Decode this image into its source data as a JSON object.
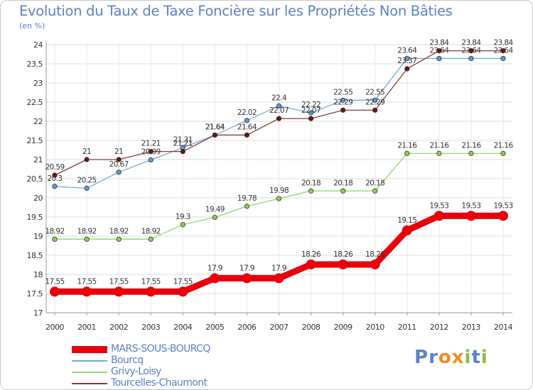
{
  "header": {
    "title": "Evolution du Taux de Taxe Foncière sur les Propriétés Non Bâties",
    "unit": "(en %)"
  },
  "logo": {
    "text": "Proxiti",
    "letters": [
      "P",
      "r",
      "o",
      "x",
      "i",
      "t",
      "i"
    ],
    "colors": [
      "#5b82c4",
      "#5b82c4",
      "#f28c1e",
      "#f28c1e",
      "#8cbd3f",
      "#5b82c4",
      "#8cbd3f"
    ]
  },
  "chart_data": {
    "type": "line",
    "title": "Evolution du Taux de Taxe Foncière sur les Propriétés Non Bâties",
    "ylabel": "(en %)",
    "xlabel": "",
    "x": [
      "2000",
      "2001",
      "2002",
      "2003",
      "2004",
      "2005",
      "2006",
      "2007",
      "2008",
      "2009",
      "2010",
      "2011",
      "2012",
      "2013",
      "2014"
    ],
    "ylim": [
      17,
      24
    ],
    "yticks": [
      "17",
      "17.5",
      "18",
      "18.5",
      "19",
      "19.5",
      "20",
      "20.5",
      "21",
      "21.5",
      "22",
      "22.5",
      "23",
      "23.5",
      "24"
    ],
    "grid": true,
    "legend_position": "bottom-left",
    "series": [
      {
        "name": "MARS-SOUS-BOURCQ",
        "color": "#e8000b",
        "line_color": "#e8000b",
        "thick": true,
        "values": [
          17.55,
          17.55,
          17.55,
          17.55,
          17.55,
          17.9,
          17.9,
          17.9,
          18.26,
          18.26,
          18.26,
          19.15,
          19.53,
          19.53,
          19.53
        ],
        "labels": [
          "17.55",
          "17.55",
          "17.55",
          "17.55",
          "17.55",
          "17.9",
          "17.9",
          "17.9",
          "18.26",
          "18.26",
          "18.26",
          "19.15",
          "19.53",
          "19.53",
          "19.53"
        ]
      },
      {
        "name": "Bourcq",
        "color": "#5b9bd5",
        "line_color": "#7aaad6",
        "thick": false,
        "values": [
          20.3,
          20.25,
          20.67,
          20.99,
          21.31,
          21.64,
          22.02,
          22.4,
          22.22,
          22.55,
          22.55,
          23.64,
          23.64,
          23.64,
          23.64
        ],
        "labels": [
          "20.3",
          "20.25",
          "20.67",
          "20.99",
          "21.31",
          "21.64",
          "22.02",
          "22.4",
          "22.22",
          "22.55",
          "22.55",
          "23.64",
          "23.64",
          "23.64",
          "23.64"
        ]
      },
      {
        "name": "Grivy-Loisy",
        "color": "#8cd14b",
        "line_color": "#9bd36a",
        "thick": false,
        "values": [
          18.92,
          18.92,
          18.92,
          18.92,
          19.3,
          19.49,
          19.78,
          19.98,
          20.18,
          20.18,
          20.18,
          21.16,
          21.16,
          21.16,
          21.16
        ],
        "labels": [
          "18.92",
          "18.92",
          "18.92",
          "18.92",
          "19.3",
          "19.49",
          "19.78",
          "19.98",
          "20.18",
          "20.18",
          "20.18",
          "21.16",
          "21.16",
          "21.16",
          "21.16"
        ]
      },
      {
        "name": "Tourcelles-Chaumont",
        "color": "#6b1515",
        "line_color": "#8a3a3a",
        "thick": false,
        "values": [
          20.59,
          21,
          21,
          21.21,
          21.21,
          21.64,
          21.64,
          22.07,
          22.07,
          22.29,
          22.29,
          23.37,
          23.84,
          23.84,
          23.84
        ],
        "labels": [
          "20.59",
          "21",
          "21",
          "21.21",
          "21.21",
          "21.64",
          "21.64",
          "22.07",
          "22.07",
          "22.29",
          "22.29",
          "23.37",
          "23.84",
          "23.84",
          "23.84"
        ]
      }
    ]
  }
}
